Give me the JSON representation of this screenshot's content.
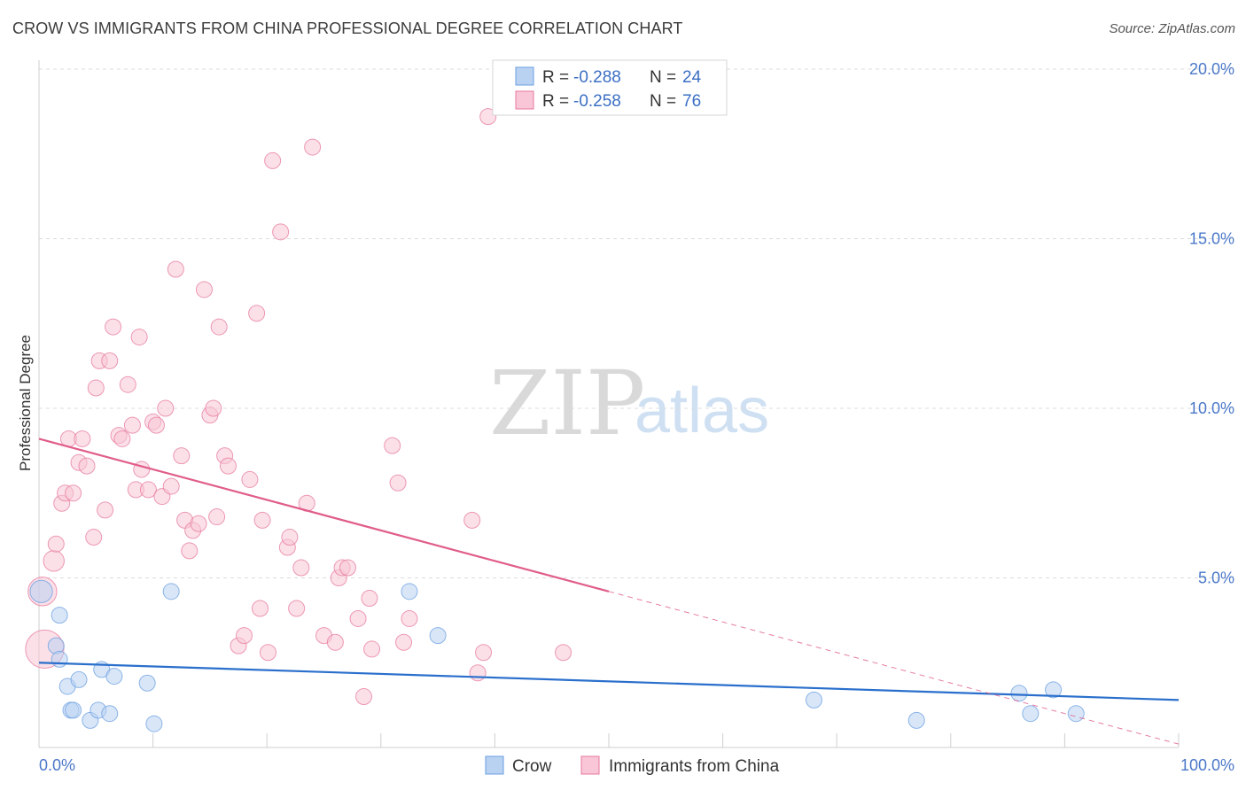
{
  "title": "CROW VS IMMIGRANTS FROM CHINA PROFESSIONAL DEGREE CORRELATION CHART",
  "source": "Source: ZipAtlas.com",
  "watermark": {
    "zip": "ZIP",
    "atlas": "atlas"
  },
  "chart_data": {
    "type": "scatter",
    "title": "CROW VS IMMIGRANTS FROM CHINA PROFESSIONAL DEGREE CORRELATION CHART",
    "xlabel": "",
    "ylabel": "Professional Degree",
    "xlim": [
      0,
      100
    ],
    "ylim": [
      0,
      20
    ],
    "x_tick_labels": [
      "0.0%",
      "100.0%"
    ],
    "y_ticks": [
      5,
      10,
      15,
      20
    ],
    "y_tick_labels": [
      "5.0%",
      "10.0%",
      "15.0%",
      "20.0%"
    ],
    "grid": true,
    "legend": [
      {
        "name": "Crow",
        "r_label": "R =",
        "r": "-0.288",
        "n_label": "N =",
        "n": "24",
        "color": "#6a9fe0",
        "fill": "#b9d2f2"
      },
      {
        "name": "Immigrants from China",
        "r_label": "R =",
        "r": "-0.258",
        "n_label": "N =",
        "n": "76",
        "color": "#e7799c",
        "fill": "#f8c6d6"
      }
    ],
    "series": [
      {
        "name": "Crow",
        "color": "#6a9fe0",
        "trend": {
          "x0": 0,
          "y0": 2.5,
          "x1": 100,
          "y1": 1.4,
          "dash_from": null,
          "color": "#2a6fcc"
        },
        "points": [
          [
            0.2,
            4.6,
            1.4
          ],
          [
            1.5,
            3.0,
            1
          ],
          [
            1.8,
            3.9,
            1
          ],
          [
            1.8,
            2.6,
            1
          ],
          [
            2.5,
            1.8,
            1
          ],
          [
            3.5,
            2.0,
            1
          ],
          [
            2.8,
            1.1,
            1
          ],
          [
            3.0,
            1.1,
            1
          ],
          [
            4.5,
            0.8,
            1
          ],
          [
            5.2,
            1.1,
            1
          ],
          [
            5.5,
            2.3,
            1
          ],
          [
            6.2,
            1.0,
            1
          ],
          [
            6.6,
            2.1,
            1
          ],
          [
            9.5,
            1.9,
            1
          ],
          [
            10.1,
            0.7,
            1
          ],
          [
            11.6,
            4.6,
            1
          ],
          [
            32.5,
            4.6,
            1
          ],
          [
            35.0,
            3.3,
            1
          ],
          [
            68.0,
            1.4,
            1
          ],
          [
            77.0,
            0.8,
            1
          ],
          [
            86.0,
            1.6,
            1
          ],
          [
            87.0,
            1.0,
            1
          ],
          [
            89.0,
            1.7,
            1
          ],
          [
            91.0,
            1.0,
            1
          ]
        ]
      },
      {
        "name": "Immigrants from China",
        "color": "#e7799c",
        "trend": {
          "x0": 0,
          "y0": 9.1,
          "x1": 100,
          "y1": 0.1,
          "dash_from": 50,
          "color": "#e05d8a"
        },
        "points": [
          [
            0.3,
            4.6,
            1.8
          ],
          [
            0.5,
            2.9,
            2.4
          ],
          [
            1.3,
            5.5,
            1.3
          ],
          [
            1.5,
            6.0,
            1
          ],
          [
            2.0,
            7.2,
            1
          ],
          [
            2.3,
            7.5,
            1
          ],
          [
            2.6,
            9.1,
            1
          ],
          [
            3.0,
            7.5,
            1
          ],
          [
            3.5,
            8.4,
            1
          ],
          [
            3.8,
            9.1,
            1
          ],
          [
            4.2,
            8.3,
            1
          ],
          [
            4.8,
            6.2,
            1
          ],
          [
            5.0,
            10.6,
            1
          ],
          [
            5.3,
            11.4,
            1
          ],
          [
            5.8,
            7.0,
            1
          ],
          [
            6.2,
            11.4,
            1
          ],
          [
            6.5,
            12.4,
            1
          ],
          [
            7.0,
            9.2,
            1
          ],
          [
            7.3,
            9.1,
            1
          ],
          [
            7.8,
            10.7,
            1
          ],
          [
            8.2,
            9.5,
            1
          ],
          [
            8.5,
            7.6,
            1
          ],
          [
            8.8,
            12.1,
            1
          ],
          [
            9.0,
            8.2,
            1
          ],
          [
            9.6,
            7.6,
            1
          ],
          [
            10.0,
            9.6,
            1
          ],
          [
            10.3,
            9.5,
            1
          ],
          [
            10.8,
            7.4,
            1
          ],
          [
            11.1,
            10.0,
            1
          ],
          [
            11.6,
            7.7,
            1
          ],
          [
            12.0,
            14.1,
            1
          ],
          [
            12.5,
            8.6,
            1
          ],
          [
            12.8,
            6.7,
            1
          ],
          [
            13.2,
            5.8,
            1
          ],
          [
            13.5,
            6.4,
            1
          ],
          [
            14.0,
            6.6,
            1
          ],
          [
            14.5,
            13.5,
            1
          ],
          [
            15.0,
            9.8,
            1
          ],
          [
            15.3,
            10.0,
            1
          ],
          [
            15.6,
            6.8,
            1
          ],
          [
            15.8,
            12.4,
            1
          ],
          [
            16.3,
            8.6,
            1
          ],
          [
            16.6,
            8.3,
            1
          ],
          [
            17.5,
            3.0,
            1
          ],
          [
            18.0,
            3.3,
            1
          ],
          [
            18.5,
            7.9,
            1
          ],
          [
            19.1,
            12.8,
            1
          ],
          [
            19.4,
            4.1,
            1
          ],
          [
            19.6,
            6.7,
            1
          ],
          [
            20.1,
            2.8,
            1
          ],
          [
            20.5,
            17.3,
            1
          ],
          [
            21.2,
            15.2,
            1
          ],
          [
            21.8,
            5.9,
            1
          ],
          [
            22.0,
            6.2,
            1
          ],
          [
            22.6,
            4.1,
            1
          ],
          [
            23.0,
            5.3,
            1
          ],
          [
            23.5,
            7.2,
            1
          ],
          [
            24.0,
            17.7,
            1
          ],
          [
            25.0,
            3.3,
            1
          ],
          [
            26.0,
            3.1,
            1
          ],
          [
            26.3,
            5.0,
            1
          ],
          [
            26.6,
            5.3,
            1
          ],
          [
            27.1,
            5.3,
            1
          ],
          [
            28.0,
            3.8,
            1
          ],
          [
            28.5,
            1.5,
            1
          ],
          [
            29.0,
            4.4,
            1
          ],
          [
            29.2,
            2.9,
            1
          ],
          [
            31.0,
            8.9,
            1
          ],
          [
            31.5,
            7.8,
            1
          ],
          [
            32.0,
            3.1,
            1
          ],
          [
            32.5,
            3.8,
            1
          ],
          [
            38.0,
            6.7,
            1
          ],
          [
            38.5,
            2.2,
            1
          ],
          [
            39.0,
            2.8,
            1
          ],
          [
            39.4,
            18.6,
            1
          ],
          [
            46.0,
            2.8,
            1
          ]
        ]
      }
    ]
  }
}
